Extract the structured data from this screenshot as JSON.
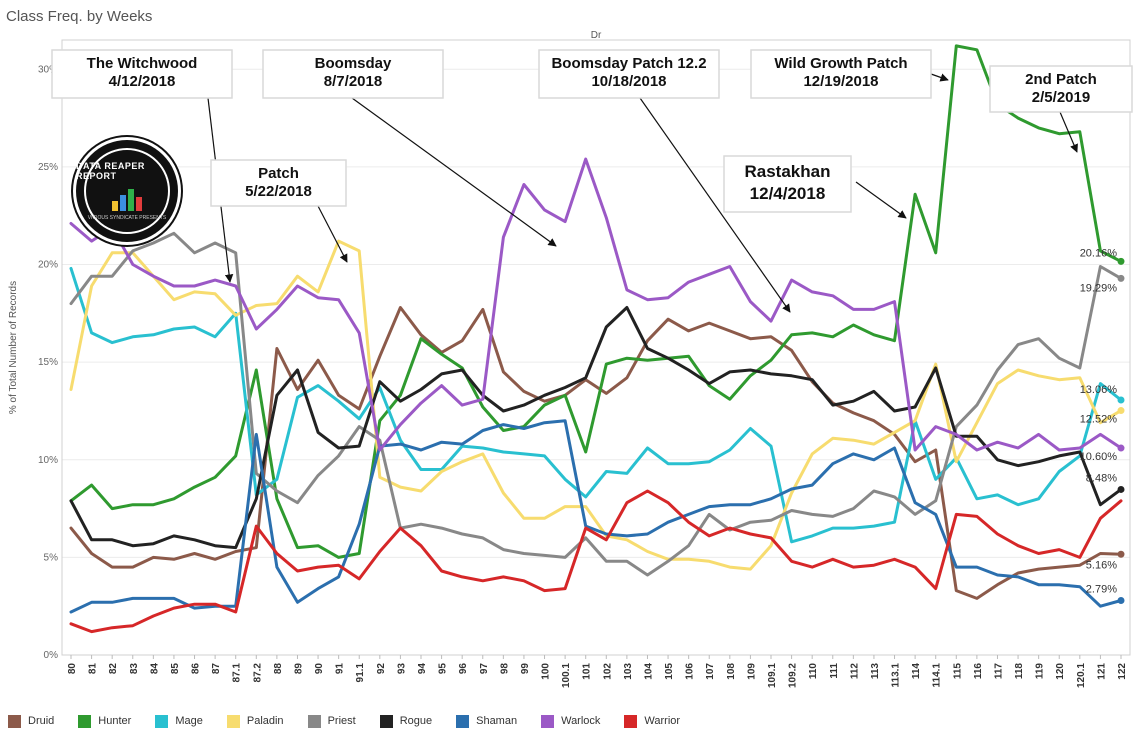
{
  "title": "Class Freq. by Weeks",
  "chart_data": {
    "type": "line",
    "column_header": "Dr",
    "ylabel": "% of Total Number of Records",
    "ylim": [
      0,
      31.5
    ],
    "yticks": [
      "0%",
      "5%",
      "10%",
      "15%",
      "20%",
      "25%",
      "30%"
    ],
    "ytick_values": [
      0,
      5,
      10,
      15,
      20,
      25,
      30
    ],
    "categories": [
      "80",
      "81",
      "82",
      "83",
      "84",
      "85",
      "86",
      "87",
      "87.1",
      "87.2",
      "88",
      "89",
      "90",
      "91",
      "91.1",
      "92",
      "93",
      "94",
      "95",
      "96",
      "97",
      "98",
      "99",
      "100",
      "100.1",
      "101",
      "102",
      "103",
      "104",
      "105",
      "106",
      "107",
      "108",
      "109",
      "109.1",
      "109.2",
      "110",
      "111",
      "112",
      "113",
      "113.1",
      "114",
      "114.1",
      "115",
      "116",
      "117",
      "118",
      "119",
      "120",
      "120.1",
      "121",
      "122"
    ],
    "series": [
      {
        "name": "Druid",
        "color": "#8c5a4a",
        "values": [
          6.5,
          5.2,
          4.5,
          4.5,
          5.0,
          4.9,
          5.2,
          4.9,
          5.3,
          5.5,
          15.7,
          13.6,
          15.1,
          13.3,
          12.6,
          15.3,
          17.8,
          16.4,
          15.5,
          16.1,
          17.7,
          14.5,
          13.5,
          13.0,
          13.3,
          14.1,
          13.4,
          14.2,
          16.1,
          17.2,
          16.6,
          17.0,
          16.6,
          16.2,
          16.3,
          15.6,
          14.0,
          12.9,
          12.4,
          12.0,
          11.3,
          9.9,
          10.5,
          3.3,
          2.9,
          3.6,
          4.2,
          4.4,
          4.5,
          4.6,
          5.2,
          5.16
        ],
        "end_label": "5.16%"
      },
      {
        "name": "Hunter",
        "color": "#2f9a2f",
        "values": [
          7.9,
          8.7,
          7.5,
          7.7,
          7.7,
          8.0,
          8.6,
          9.1,
          10.2,
          14.6,
          8.0,
          5.5,
          5.6,
          5.0,
          5.2,
          12.0,
          13.3,
          16.2,
          15.4,
          14.7,
          12.7,
          11.5,
          11.7,
          12.8,
          13.3,
          10.4,
          14.9,
          15.2,
          15.1,
          15.2,
          15.3,
          13.8,
          13.1,
          14.3,
          15.1,
          16.4,
          16.5,
          16.3,
          16.9,
          16.4,
          16.1,
          23.6,
          20.6,
          31.2,
          31.0,
          28.2,
          27.5,
          27.0,
          26.7,
          26.8,
          20.7,
          20.16
        ],
        "end_label": "20.16%"
      },
      {
        "name": "Mage",
        "color": "#29c0d0",
        "values": [
          19.8,
          16.5,
          16.0,
          16.3,
          16.4,
          16.7,
          16.8,
          16.3,
          17.5,
          8.2,
          9.0,
          13.2,
          13.8,
          13.0,
          12.1,
          13.7,
          11.0,
          9.5,
          9.5,
          10.7,
          10.6,
          10.4,
          10.3,
          10.2,
          9.0,
          8.1,
          9.4,
          9.3,
          10.6,
          9.8,
          9.8,
          9.9,
          10.5,
          11.6,
          10.7,
          5.8,
          6.1,
          6.5,
          6.5,
          6.6,
          6.8,
          12.0,
          9.0,
          10.1,
          8.0,
          8.2,
          7.7,
          8.0,
          9.4,
          10.2,
          13.9,
          13.06
        ],
        "end_label": "13.06%"
      },
      {
        "name": "Paladin",
        "color": "#f7dc6f",
        "values": [
          13.6,
          18.9,
          20.6,
          20.6,
          19.4,
          18.2,
          18.6,
          18.5,
          17.4,
          17.9,
          18.0,
          19.4,
          18.6,
          21.2,
          20.7,
          9.1,
          8.6,
          8.4,
          9.4,
          9.9,
          10.3,
          8.3,
          7.0,
          7.0,
          7.6,
          7.6,
          6.1,
          5.9,
          5.3,
          4.9,
          4.9,
          4.8,
          4.5,
          4.4,
          5.6,
          8.3,
          10.3,
          11.1,
          11.0,
          10.8,
          11.4,
          12.0,
          14.9,
          9.9,
          11.9,
          13.9,
          14.6,
          14.3,
          14.1,
          14.2,
          11.9,
          12.52
        ],
        "end_label": "12.52%"
      },
      {
        "name": "Priest",
        "color": "#888888",
        "values": [
          18.0,
          19.4,
          19.4,
          20.7,
          21.1,
          21.6,
          20.6,
          21.1,
          20.6,
          9.3,
          8.4,
          7.8,
          9.2,
          10.2,
          11.7,
          11.0,
          6.5,
          6.7,
          6.5,
          6.2,
          6.0,
          5.4,
          5.2,
          5.1,
          5.0,
          6.0,
          4.8,
          4.8,
          4.1,
          4.8,
          5.6,
          7.2,
          6.4,
          6.8,
          6.9,
          7.4,
          7.2,
          7.1,
          7.5,
          8.4,
          8.1,
          7.2,
          7.9,
          11.7,
          12.8,
          14.6,
          15.9,
          16.2,
          15.2,
          14.7,
          19.9,
          19.29
        ],
        "end_label": "19.29%"
      },
      {
        "name": "Rogue",
        "color": "#222222",
        "values": [
          7.9,
          5.9,
          5.9,
          5.6,
          5.7,
          6.1,
          5.9,
          5.6,
          5.5,
          8.0,
          13.3,
          14.6,
          11.4,
          10.6,
          10.7,
          14.0,
          13.0,
          13.6,
          14.4,
          14.6,
          13.3,
          12.5,
          12.8,
          13.3,
          13.7,
          14.2,
          16.8,
          17.8,
          15.7,
          15.2,
          14.6,
          13.9,
          14.5,
          14.6,
          14.4,
          14.3,
          14.1,
          12.8,
          13.0,
          13.5,
          12.5,
          12.7,
          14.7,
          11.2,
          11.2,
          10.0,
          9.7,
          9.9,
          10.2,
          10.4,
          7.7,
          8.48
        ],
        "end_label": "8.48%"
      },
      {
        "name": "Shaman",
        "color": "#2b6fae",
        "values": [
          2.2,
          2.7,
          2.7,
          2.9,
          2.9,
          2.9,
          2.4,
          2.5,
          2.5,
          11.3,
          4.5,
          2.7,
          3.4,
          4.0,
          6.7,
          10.7,
          10.8,
          10.5,
          10.9,
          10.8,
          11.5,
          11.8,
          11.6,
          11.9,
          12.0,
          6.6,
          6.2,
          6.1,
          6.2,
          6.8,
          7.2,
          7.6,
          7.7,
          7.7,
          8.0,
          8.5,
          8.7,
          9.8,
          10.3,
          10.0,
          10.6,
          7.8,
          7.2,
          4.5,
          4.5,
          4.1,
          4.0,
          3.6,
          3.6,
          3.5,
          2.5,
          2.79
        ],
        "end_label": "2.79%"
      },
      {
        "name": "Warlock",
        "color": "#9b59c6",
        "values": [
          22.1,
          21.2,
          21.9,
          20.0,
          19.4,
          18.9,
          18.9,
          19.2,
          18.9,
          16.7,
          17.7,
          18.9,
          18.3,
          18.2,
          16.5,
          10.5,
          11.8,
          12.9,
          13.8,
          12.8,
          13.1,
          21.4,
          24.1,
          22.8,
          22.2,
          25.4,
          22.4,
          18.7,
          18.2,
          18.3,
          19.1,
          19.5,
          19.9,
          18.1,
          17.1,
          19.2,
          18.6,
          18.4,
          17.7,
          17.7,
          18.1,
          10.5,
          11.7,
          11.3,
          10.5,
          10.9,
          10.6,
          11.3,
          10.5,
          10.6,
          11.3,
          10.6
        ],
        "end_label": "10.60%"
      },
      {
        "name": "Warrior",
        "color": "#d62728",
        "values": [
          1.6,
          1.2,
          1.4,
          1.5,
          2.0,
          2.4,
          2.6,
          2.6,
          2.2,
          6.6,
          5.2,
          4.3,
          4.5,
          4.6,
          3.9,
          5.3,
          6.5,
          5.6,
          4.3,
          4.0,
          3.8,
          4.0,
          3.8,
          3.3,
          3.4,
          6.5,
          5.9,
          7.8,
          8.4,
          7.8,
          6.8,
          6.1,
          6.5,
          6.2,
          6.0,
          4.8,
          4.5,
          4.9,
          4.5,
          4.6,
          4.9,
          4.5,
          3.4,
          7.2,
          7.1,
          6.2,
          5.6,
          5.2,
          5.4,
          5.0,
          7.0,
          7.9
        ]
      }
    ],
    "annotations": [
      {
        "lines": [
          "The Witchwood",
          "4/12/2018"
        ]
      },
      {
        "lines": [
          "Boomsday",
          "8/7/2018"
        ]
      },
      {
        "lines": [
          "Boomsday Patch 12.2",
          "10/18/2018"
        ]
      },
      {
        "lines": [
          "Wild Growth Patch",
          "12/19/2018"
        ]
      },
      {
        "lines": [
          "2nd Patch",
          "2/5/2019"
        ]
      },
      {
        "lines": [
          "Patch",
          "5/22/2018"
        ]
      },
      {
        "lines": [
          "Rastakhan",
          "12/4/2018"
        ]
      }
    ],
    "legend_position": "bottom"
  },
  "logo": {
    "text": "DATA REAPER REPORT",
    "sub": "VICIOUS SYNDICATE PRESENTS"
  }
}
